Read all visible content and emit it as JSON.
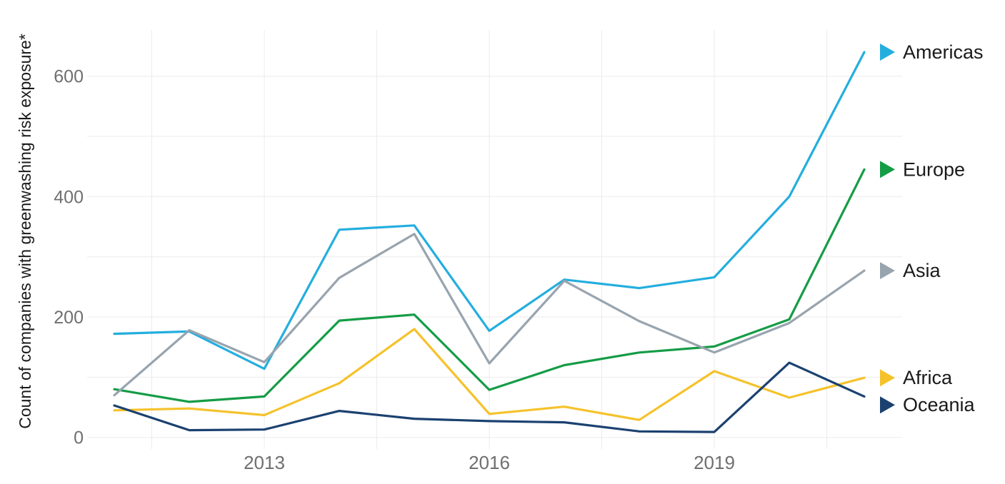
{
  "chart_data": {
    "type": "line",
    "title": "",
    "ylabel": "Count of companies with greenwashing risk exposure*",
    "xlabel": "",
    "x": [
      2011,
      2012,
      2013,
      2014,
      2015,
      2016,
      2017,
      2018,
      2019,
      2020,
      2021
    ],
    "series": [
      {
        "name": "Americas",
        "color": "#24aede",
        "values": [
          172,
          176,
          114,
          345,
          352,
          177,
          262,
          248,
          266,
          400,
          640
        ]
      },
      {
        "name": "Europe",
        "color": "#159c46",
        "values": [
          80,
          59,
          68,
          194,
          204,
          79,
          120,
          141,
          151,
          196,
          445
        ]
      },
      {
        "name": "Asia",
        "color": "#98a4ae",
        "values": [
          70,
          178,
          125,
          265,
          338,
          123,
          260,
          193,
          141,
          190,
          277
        ]
      },
      {
        "name": "Africa",
        "color": "#f5c22b",
        "values": [
          45,
          48,
          37,
          90,
          180,
          39,
          51,
          29,
          110,
          66,
          99
        ]
      },
      {
        "name": "Oceania",
        "color": "#1b4170",
        "values": [
          53,
          12,
          13,
          44,
          31,
          27,
          25,
          10,
          9,
          124,
          68
        ]
      }
    ],
    "x_ticks": [
      {
        "label": "2013",
        "year": 2013
      },
      {
        "label": "2016",
        "year": 2016
      },
      {
        "label": "2019",
        "year": 2019
      }
    ],
    "y_ticks": [
      {
        "label": "0",
        "value": 0
      },
      {
        "label": "200",
        "value": 200
      },
      {
        "label": "400",
        "value": 400
      },
      {
        "label": "600",
        "value": 600
      }
    ],
    "ylim": [
      0,
      700
    ],
    "grid": true,
    "legend_position": "right",
    "legend_marker": "right-triangle"
  },
  "style": {
    "background": "#ffffff",
    "grid_color": "#ebebeb",
    "tick_label_color": "#6f6f6f",
    "text_color": "#1a1a1a"
  }
}
